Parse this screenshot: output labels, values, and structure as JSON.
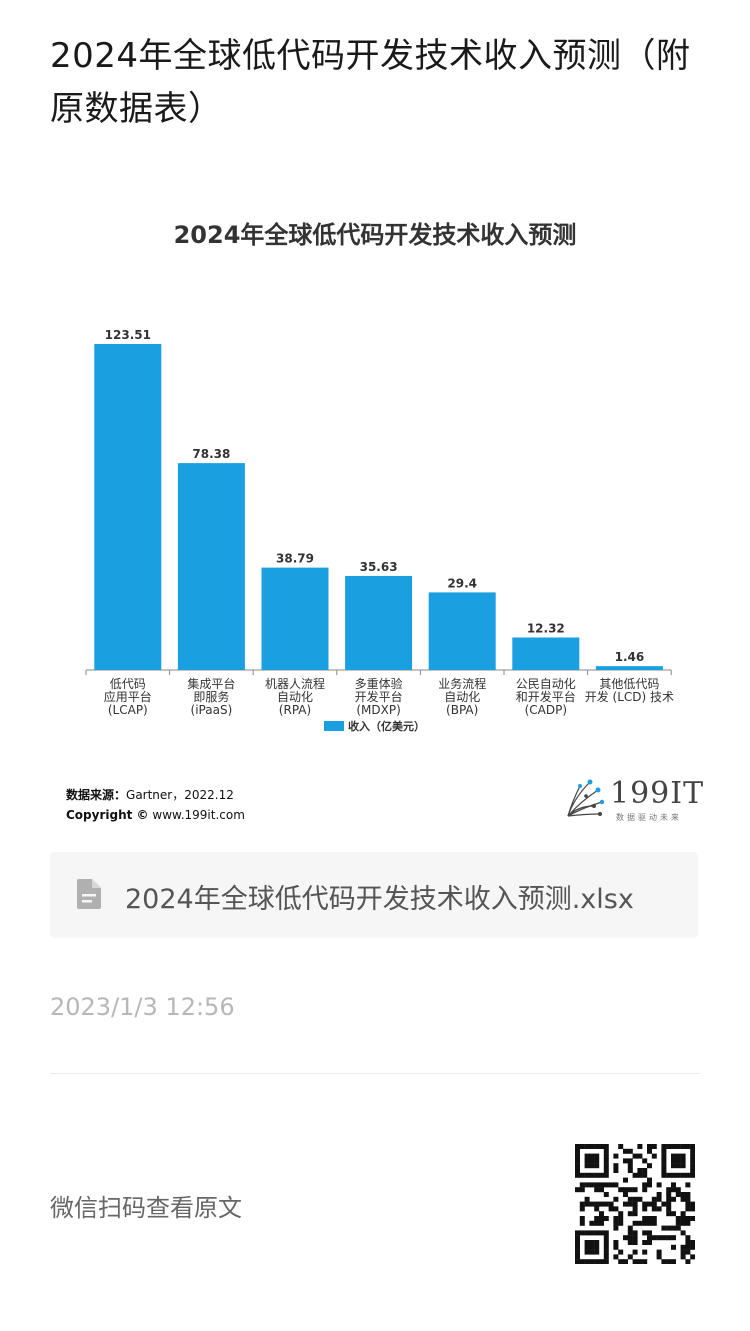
{
  "page": {
    "title": "2024年全球低代码开发技术收入预测（附原数据表）",
    "attachment": "2024年全球低代码开发技术收入预测.xlsx",
    "timestamp": "2023/1/3 12:56",
    "scan_text": "微信扫码查看原文",
    "icons": {
      "file": "file-icon",
      "qr": "qr-code-icon"
    }
  },
  "chart_meta": {
    "source_label": "数据来源：",
    "source_value": "Gartner，2022.12",
    "copyright_label": "Copyright ©",
    "copyright_value": "www.199it.com",
    "logo_text": "199IT",
    "logo_tagline": "数据驱动未来"
  },
  "colors": {
    "bar": "#1aa0e0",
    "axis": "#888888",
    "text": "#333333"
  },
  "chart_data": {
    "type": "bar",
    "title": "2024年全球低代码开发技术收入预测",
    "categories": [
      [
        "低代码",
        "应用平台",
        "(LCAP)"
      ],
      [
        "集成平台",
        "即服务",
        "(iPaaS)"
      ],
      [
        "机器人流程",
        "自动化",
        "(RPA)"
      ],
      [
        "多重体验",
        "开发平台",
        "(MDXP)"
      ],
      [
        "业务流程",
        "自动化",
        "(BPA)"
      ],
      [
        "公民自动化",
        "和开发平台",
        "(CADP)"
      ],
      [
        "其他低代码",
        "开发 (LCD) 技术"
      ]
    ],
    "series": [
      {
        "name": "收入（亿美元）",
        "values": [
          123.51,
          78.38,
          38.79,
          35.63,
          29.4,
          12.32,
          1.46
        ]
      }
    ],
    "data_labels": [
      "123.51",
      "78.38",
      "38.79",
      "35.63",
      "29.4",
      "12.32",
      "1.46"
    ],
    "legend_position": "bottom",
    "ylim": [
      0,
      123.51
    ],
    "grid": false
  }
}
